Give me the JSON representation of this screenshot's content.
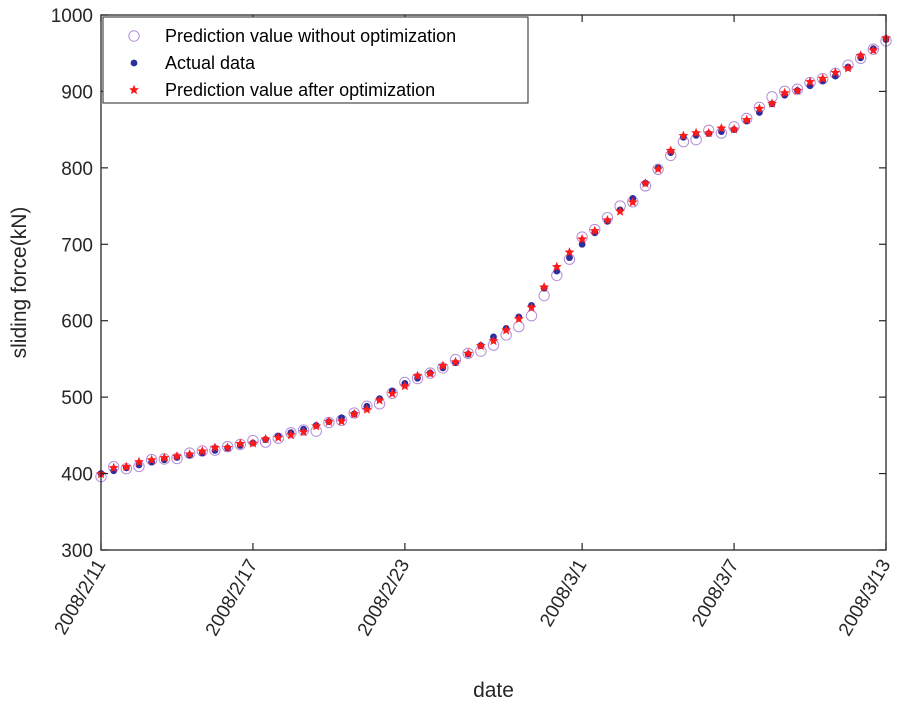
{
  "chart_data": {
    "type": "scatter",
    "title": "",
    "xlabel": "date",
    "ylabel": "sliding force(kN)",
    "ylim": [
      300,
      1000
    ],
    "yticks": [
      300,
      400,
      500,
      600,
      700,
      800,
      900,
      1000
    ],
    "xlim": [
      "2008/2/11",
      "2008/3/13"
    ],
    "xticks": [
      "2008/2/11",
      "2008/2/17",
      "2008/2/23",
      "2008/3/1",
      "2008/3/7",
      "2008/3/13"
    ],
    "grid": false,
    "legend_position": "top-left",
    "x": [
      "2008/2/11",
      "2008/2/13",
      "2008/2/15",
      "2008/2/17",
      "2008/2/19",
      "2008/2/21",
      "2008/2/23",
      "2008/2/25",
      "2008/2/27",
      "2008/2/28",
      "2008/2/29",
      "2008/3/1",
      "2008/3/3",
      "2008/3/5",
      "2008/3/7",
      "2008/3/9",
      "2008/3/11",
      "2008/3/13"
    ],
    "series": [
      {
        "name": "Prediction value without optimization",
        "marker": "open-circle",
        "color": "#b28fd9",
        "values": [
          401,
          416,
          427,
          440,
          455,
          475,
          515,
          545,
          578,
          610,
          660,
          705,
          760,
          835,
          855,
          900,
          925,
          965
        ]
      },
      {
        "name": "Actual data",
        "marker": "dot",
        "color": "#2a2f9e",
        "values": [
          400,
          415,
          427,
          440,
          458,
          478,
          518,
          545,
          590,
          620,
          665,
          700,
          760,
          840,
          850,
          895,
          920,
          968
        ]
      },
      {
        "name": "Prediction value after optimization",
        "marker": "star",
        "color": "#ff1a1a",
        "values": [
          401,
          417,
          428,
          441,
          455,
          476,
          517,
          548,
          585,
          615,
          668,
          708,
          758,
          842,
          852,
          898,
          922,
          967
        ]
      }
    ]
  }
}
